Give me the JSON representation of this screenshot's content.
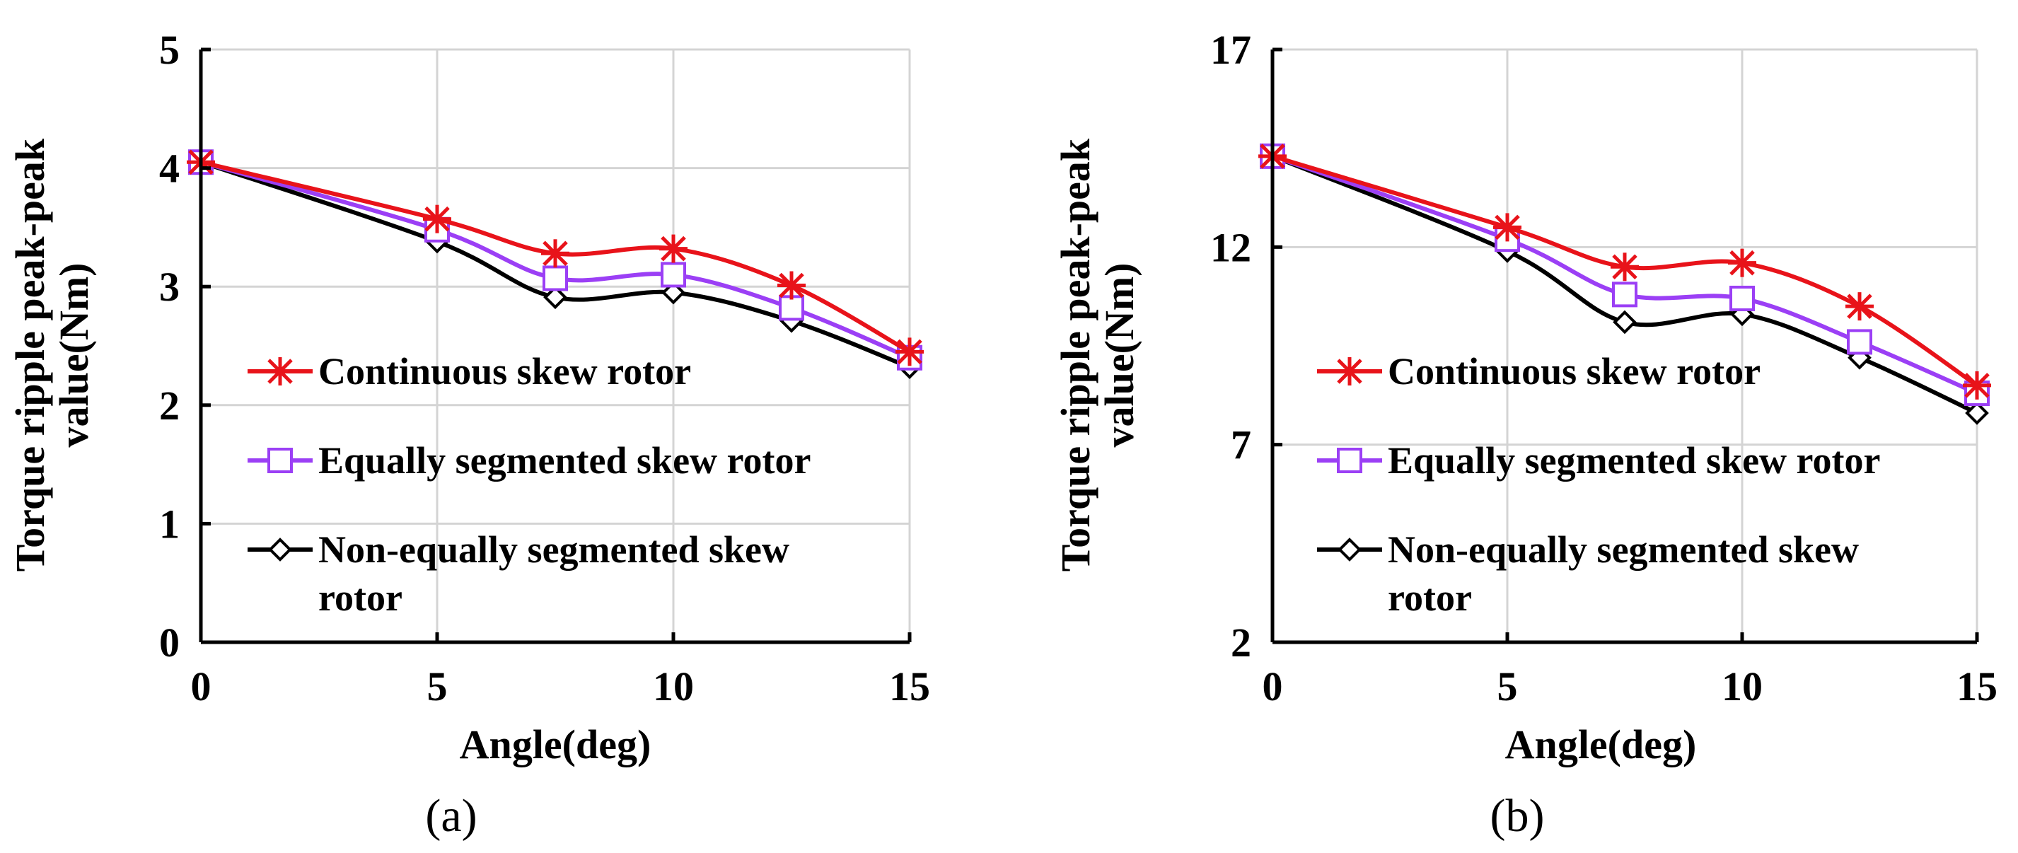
{
  "chart_data": [
    {
      "type": "line",
      "caption": "(a)",
      "xlabel": "Angle(deg)",
      "ylabel_line1": "Torque  ripple  peak-peak",
      "ylabel_line2": "value(Nm)",
      "x": [
        0,
        5,
        7.5,
        10,
        12.5,
        15
      ],
      "xticks": [
        "0",
        "5",
        "10",
        "15"
      ],
      "xtick_values": [
        0,
        5,
        10,
        15
      ],
      "yticks": [
        "0",
        "1",
        "2",
        "3",
        "4",
        "5"
      ],
      "ytick_values": [
        0,
        1,
        2,
        3,
        4,
        5
      ],
      "xlim": [
        0,
        15
      ],
      "ylim": [
        0,
        5
      ],
      "grid": true,
      "series": [
        {
          "name": "Continuous skew rotor",
          "values": [
            4.05,
            3.57,
            3.28,
            3.32,
            3.01,
            2.45
          ],
          "color": "#e8131a",
          "marker": "star"
        },
        {
          "name": "Equally segmented skew rotor",
          "values": [
            4.05,
            3.48,
            3.07,
            3.1,
            2.82,
            2.4
          ],
          "color": "#9b3ff5",
          "marker": "square"
        },
        {
          "name": "Non-equally segmented skew",
          "name_line2": "rotor",
          "values": [
            4.05,
            3.38,
            2.91,
            2.95,
            2.71,
            2.32
          ],
          "color": "#000000",
          "marker": "diamond"
        }
      ]
    },
    {
      "type": "line",
      "caption": "(b)",
      "xlabel": "Angle(deg)",
      "ylabel_line1": "Torque  ripple  peak-peak",
      "ylabel_line2": "value(Nm)",
      "x": [
        0,
        5,
        7.5,
        10,
        12.5,
        15
      ],
      "xticks": [
        "0",
        "5",
        "10",
        "15"
      ],
      "xtick_values": [
        0,
        5,
        10,
        15
      ],
      "yticks": [
        "2",
        "7",
        "12",
        "17"
      ],
      "ytick_values": [
        2,
        7,
        12,
        17
      ],
      "xlim": [
        0,
        15
      ],
      "ylim": [
        2,
        17
      ],
      "grid": true,
      "series": [
        {
          "name": "Continuous skew rotor",
          "values": [
            14.3,
            12.5,
            11.5,
            11.6,
            10.5,
            8.5
          ],
          "color": "#e8131a",
          "marker": "star"
        },
        {
          "name": "Equally segmented skew rotor",
          "values": [
            14.3,
            12.2,
            10.8,
            10.7,
            9.6,
            8.3
          ],
          "color": "#9b3ff5",
          "marker": "square"
        },
        {
          "name": "Non-equally segmented skew",
          "name_line2": "rotor",
          "values": [
            14.3,
            11.9,
            10.1,
            10.3,
            9.2,
            7.8
          ],
          "color": "#000000",
          "marker": "diamond"
        }
      ]
    }
  ]
}
